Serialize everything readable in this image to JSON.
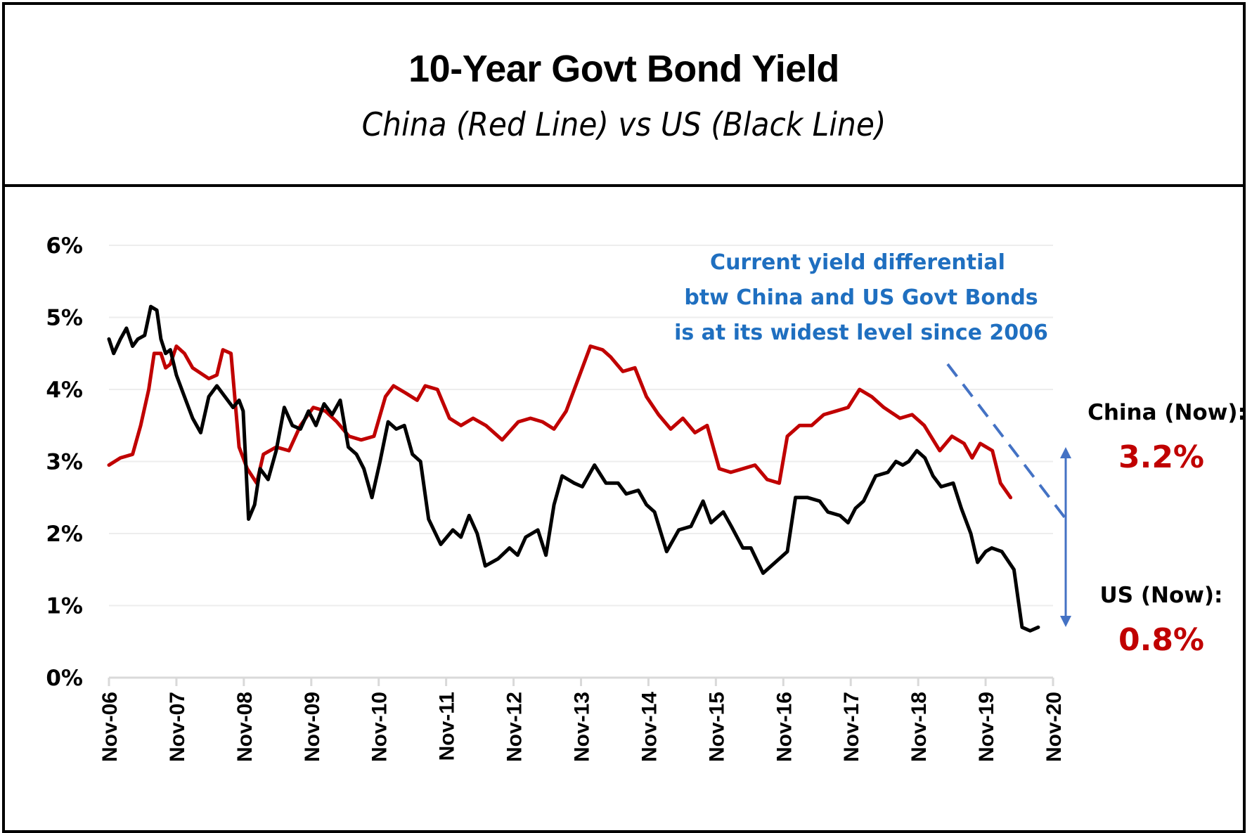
{
  "header": {
    "title": "10-Year Govt Bond Yield",
    "subtitle": "China (Red Line) vs US (Black Line)"
  },
  "annotation": {
    "lines": [
      "Current yield differential",
      "btw China and US Govt Bonds",
      "is at its widest level since 2006"
    ],
    "color": "#1F6FC0",
    "arrow_color": "#4472C4"
  },
  "now_labels": {
    "china_label": "China (Now):",
    "china_value": "3.2%",
    "us_label": "US (Now):",
    "us_value": "0.8%",
    "value_color": "#C00000"
  },
  "chart_data": {
    "type": "line",
    "title": "10-Year Govt Bond Yield",
    "subtitle": "China (Red Line) vs US (Black Line)",
    "xlabel": "",
    "ylabel": "",
    "x_unit": "decimal year",
    "xlim": [
      2006.83,
      2020.83
    ],
    "ylim": [
      0,
      6
    ],
    "grid": true,
    "y_ticks": [
      "0%",
      "1%",
      "2%",
      "3%",
      "4%",
      "5%",
      "6%"
    ],
    "y_tick_values": [
      0,
      1,
      2,
      3,
      4,
      5,
      6
    ],
    "x_ticks": [
      "Nov-06",
      "Nov-07",
      "Nov-08",
      "Nov-09",
      "Nov-10",
      "Nov-11",
      "Nov-12",
      "Nov-13",
      "Nov-14",
      "Nov-15",
      "Nov-16",
      "Nov-17",
      "Nov-18",
      "Nov-19",
      "Nov-20"
    ],
    "x_tick_values": [
      2006.83,
      2007.83,
      2008.83,
      2009.83,
      2010.83,
      2011.83,
      2012.83,
      2013.83,
      2014.83,
      2015.83,
      2016.83,
      2017.83,
      2018.83,
      2019.83,
      2020.83
    ],
    "series": [
      {
        "name": "China",
        "color": "#C00000",
        "x": [
          2006.83,
          2007.0,
          2007.18,
          2007.3,
          2007.42,
          2007.5,
          2007.6,
          2007.67,
          2007.74,
          2007.83,
          2007.95,
          2008.07,
          2008.31,
          2008.43,
          2008.52,
          2008.64,
          2008.76,
          2008.88,
          2009.02,
          2009.12,
          2009.31,
          2009.5,
          2009.67,
          2009.86,
          2010.04,
          2010.21,
          2010.39,
          2010.57,
          2010.76,
          2010.93,
          2011.05,
          2011.23,
          2011.4,
          2011.52,
          2011.7,
          2011.88,
          2012.05,
          2012.23,
          2012.42,
          2012.66,
          2012.9,
          2013.08,
          2013.26,
          2013.43,
          2013.61,
          2013.79,
          2013.97,
          2014.15,
          2014.27,
          2014.45,
          2014.63,
          2014.8,
          2014.98,
          2015.16,
          2015.34,
          2015.52,
          2015.7,
          2015.88,
          2016.05,
          2016.23,
          2016.41,
          2016.59,
          2016.77,
          2016.89,
          2017.07,
          2017.25,
          2017.43,
          2017.61,
          2017.79,
          2017.96,
          2018.14,
          2018.32,
          2018.56,
          2018.74,
          2018.92,
          2019.15,
          2019.33,
          2019.51,
          2019.63,
          2019.75,
          2019.93,
          2020.05,
          2020.2
        ],
        "y": [
          2.95,
          3.05,
          3.1,
          3.5,
          4.0,
          4.5,
          4.5,
          4.3,
          4.35,
          4.6,
          4.5,
          4.3,
          4.15,
          4.2,
          4.55,
          4.5,
          3.2,
          2.9,
          2.7,
          3.1,
          3.2,
          3.15,
          3.5,
          3.75,
          3.7,
          3.55,
          3.35,
          3.3,
          3.35,
          3.9,
          4.05,
          3.95,
          3.85,
          4.05,
          4.0,
          3.6,
          3.5,
          3.6,
          3.5,
          3.3,
          3.55,
          3.6,
          3.55,
          3.45,
          3.7,
          4.15,
          4.6,
          4.55,
          4.45,
          4.25,
          4.3,
          3.9,
          3.65,
          3.45,
          3.6,
          3.4,
          3.5,
          2.9,
          2.85,
          2.9,
          2.95,
          2.75,
          2.7,
          3.35,
          3.5,
          3.5,
          3.65,
          3.7,
          3.75,
          4.0,
          3.9,
          3.75,
          3.6,
          3.65,
          3.5,
          3.15,
          3.35,
          3.25,
          3.05,
          3.25,
          3.15,
          2.7,
          2.5
        ]
      },
      {
        "name": "US",
        "color": "#000000",
        "x": [
          2006.83,
          2006.9,
          2007.0,
          2007.09,
          2007.18,
          2007.26,
          2007.36,
          2007.45,
          2007.54,
          2007.6,
          2007.67,
          2007.74,
          2007.83,
          2007.95,
          2008.07,
          2008.19,
          2008.31,
          2008.43,
          2008.55,
          2008.67,
          2008.76,
          2008.82,
          2008.9,
          2008.99,
          2009.07,
          2009.19,
          2009.31,
          2009.43,
          2009.55,
          2009.67,
          2009.79,
          2009.9,
          2010.02,
          2010.14,
          2010.26,
          2010.38,
          2010.5,
          2010.61,
          2010.73,
          2010.85,
          2010.97,
          2011.09,
          2011.21,
          2011.33,
          2011.45,
          2011.57,
          2011.75,
          2011.93,
          2012.05,
          2012.17,
          2012.29,
          2012.41,
          2012.6,
          2012.77,
          2012.89,
          2013.01,
          2013.19,
          2013.31,
          2013.43,
          2013.55,
          2013.73,
          2013.85,
          2014.03,
          2014.2,
          2014.38,
          2014.5,
          2014.68,
          2014.8,
          2014.92,
          2015.1,
          2015.28,
          2015.46,
          2015.64,
          2015.76,
          2015.94,
          2016.06,
          2016.23,
          2016.35,
          2016.53,
          2016.71,
          2016.89,
          2017.01,
          2017.19,
          2017.37,
          2017.49,
          2017.67,
          2017.79,
          2017.9,
          2018.02,
          2018.2,
          2018.38,
          2018.5,
          2018.6,
          2018.69,
          2018.81,
          2018.93,
          2019.05,
          2019.17,
          2019.35,
          2019.47,
          2019.61,
          2019.71,
          2019.83,
          2019.92,
          2020.07,
          2020.25,
          2020.37,
          2020.49,
          2020.61
        ],
        "y": [
          4.7,
          4.5,
          4.7,
          4.85,
          4.6,
          4.7,
          4.75,
          5.15,
          5.1,
          4.7,
          4.5,
          4.55,
          4.2,
          3.9,
          3.6,
          3.4,
          3.9,
          4.05,
          3.9,
          3.75,
          3.85,
          3.7,
          2.2,
          2.4,
          2.9,
          2.75,
          3.15,
          3.75,
          3.5,
          3.45,
          3.7,
          3.5,
          3.8,
          3.65,
          3.85,
          3.2,
          3.1,
          2.9,
          2.5,
          3.0,
          3.55,
          3.45,
          3.5,
          3.1,
          3.0,
          2.2,
          1.85,
          2.05,
          1.95,
          2.25,
          2.0,
          1.55,
          1.65,
          1.8,
          1.7,
          1.95,
          2.05,
          1.7,
          2.4,
          2.8,
          2.7,
          2.65,
          2.95,
          2.7,
          2.7,
          2.55,
          2.6,
          2.4,
          2.3,
          1.75,
          2.05,
          2.1,
          2.45,
          2.15,
          2.3,
          2.1,
          1.8,
          1.8,
          1.45,
          1.6,
          1.75,
          2.5,
          2.5,
          2.45,
          2.3,
          2.25,
          2.15,
          2.35,
          2.45,
          2.8,
          2.85,
          3.0,
          2.95,
          3.0,
          3.15,
          3.05,
          2.8,
          2.65,
          2.7,
          2.35,
          2.0,
          1.6,
          1.75,
          1.8,
          1.75,
          1.5,
          0.7,
          0.65,
          0.7
        ]
      }
    ],
    "annotations": [
      "Current yield differential btw China and US Govt Bonds is at its widest level since 2006",
      "China (Now): 3.2%",
      "US (Now): 0.8%"
    ],
    "legend": "none"
  }
}
